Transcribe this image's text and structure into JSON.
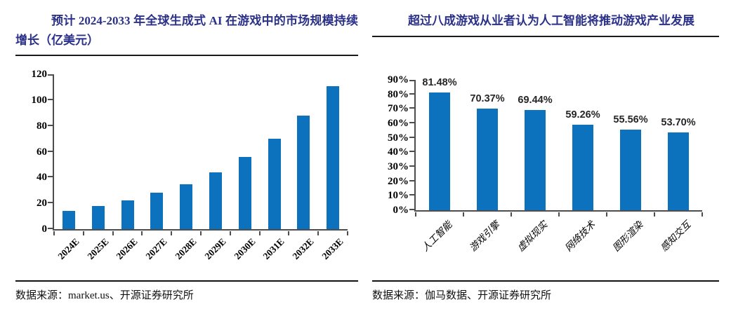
{
  "left_panel": {
    "title": "预计 2024-2033 年全球生成式 AI 在游戏中的市场规模持续增长（亿美元）",
    "source_label": "数据来源：market.us、开源证券研究所"
  },
  "right_panel": {
    "title": "超过八成游戏从业者认为人工智能将推动游戏产业发展",
    "source_label": "数据来源：伽马数据、开源证券研究所"
  },
  "colors": {
    "bar_blue": "#0D72BE",
    "title_navy": "#2B3188",
    "axis_gray": "#4d4d4d"
  },
  "chart_data": [
    {
      "type": "bar",
      "title": "预计 2024-2033 年全球生成式 AI 在游戏中的市场规模持续增长（亿美元）",
      "categories": [
        "2024E",
        "2025E",
        "2026E",
        "2027E",
        "2028E",
        "2029E",
        "2030E",
        "2031E",
        "2032E",
        "2033E"
      ],
      "values": [
        14,
        18,
        22,
        28,
        35,
        44,
        56,
        70,
        88,
        111
      ],
      "ylabel": "亿美元",
      "ylim": [
        0,
        120
      ],
      "ytick_labels": [
        "0",
        "20",
        "40",
        "60",
        "80",
        "100",
        "120"
      ],
      "bar_color": "#0D72BE",
      "data_labels": null,
      "grid": false,
      "legend": "none"
    },
    {
      "type": "bar",
      "title": "超过八成游戏从业者认为人工智能将推动游戏产业发展",
      "categories": [
        "人工智能",
        "游戏引擎",
        "虚拟现实",
        "网络技术",
        "图形渲染",
        "感知交互"
      ],
      "values": [
        81.48,
        70.37,
        69.44,
        59.26,
        55.56,
        53.7
      ],
      "ylim": [
        0,
        90
      ],
      "ytick_labels": [
        "0%",
        "10%",
        "20%",
        "30%",
        "40%",
        "50%",
        "60%",
        "70%",
        "80%",
        "90%"
      ],
      "bar_color": "#0D72BE",
      "data_labels": [
        "81.48%",
        "70.37%",
        "69.44%",
        "59.26%",
        "55.56%",
        "53.70%"
      ],
      "grid": false,
      "legend": "none"
    }
  ]
}
